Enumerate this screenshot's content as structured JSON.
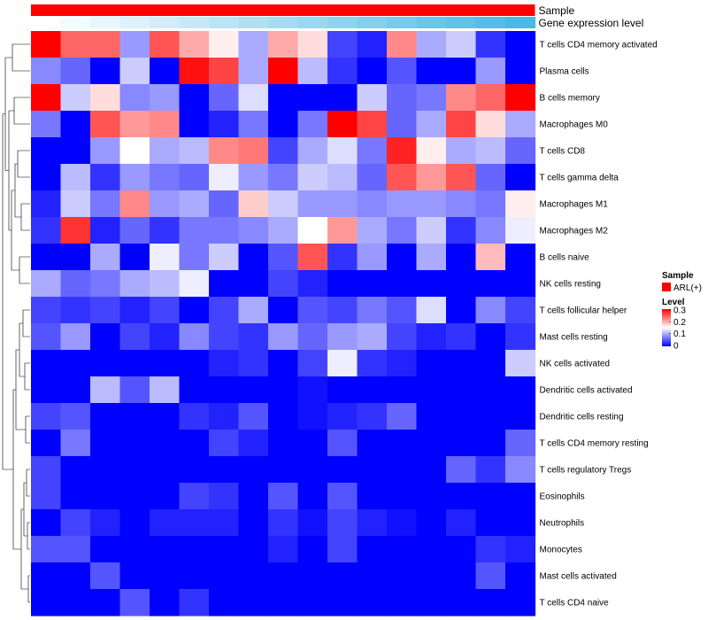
{
  "chart_data": {
    "type": "heatmap",
    "title": "",
    "annotations": [
      {
        "name": "Sample",
        "kind": "categorical",
        "color": "#ff0000"
      },
      {
        "name": "Gene expression level",
        "kind": "continuous",
        "colors": [
          "#ffffff",
          "#4cb8e6"
        ]
      }
    ],
    "rows": [
      "T cells CD4 memory activated",
      "Plasma cells",
      "B cells memory",
      "Macrophages M0",
      "T cells CD8",
      "T cells gamma delta",
      "Macrophages M1",
      "Macrophages M2",
      "B cells naive",
      "NK cells resting",
      "T cells follicular helper",
      "Mast cells resting",
      "NK cells activated",
      "Dendritic cells activated",
      "Dendritic cells resting",
      "T cells CD4 memory resting",
      "T cells regulatory  Tregs",
      "Eosinophils",
      "Neutrophils",
      "Monocytes",
      "Mast cells activated",
      "T cells CD4 naive"
    ],
    "n_columns": 17,
    "values": [
      [
        0.3,
        0.24,
        0.24,
        0.09,
        0.25,
        0.2,
        0.16,
        0.1,
        0.2,
        0.17,
        0.04,
        0.02,
        0.22,
        0.1,
        0.12,
        0.03,
        0.0
      ],
      [
        0.08,
        0.06,
        0.0,
        0.12,
        0.0,
        0.29,
        0.26,
        0.1,
        0.3,
        0.11,
        0.03,
        0.0,
        0.05,
        0.0,
        0.0,
        0.09,
        0.0
      ],
      [
        0.3,
        0.12,
        0.17,
        0.08,
        0.09,
        0.0,
        0.06,
        0.13,
        0.0,
        0.0,
        0.0,
        0.12,
        0.06,
        0.07,
        0.22,
        0.24,
        0.3
      ],
      [
        0.07,
        0.0,
        0.25,
        0.21,
        0.22,
        0.0,
        0.02,
        0.07,
        0.0,
        0.07,
        0.3,
        0.26,
        0.06,
        0.1,
        0.26,
        0.17,
        0.1
      ],
      [
        0.0,
        0.0,
        0.09,
        0.15,
        0.1,
        0.11,
        0.22,
        0.23,
        0.04,
        0.1,
        0.13,
        0.07,
        0.28,
        0.16,
        0.1,
        0.11,
        0.06
      ],
      [
        0.0,
        0.11,
        0.03,
        0.09,
        0.07,
        0.06,
        0.14,
        0.09,
        0.07,
        0.12,
        0.11,
        0.06,
        0.25,
        0.21,
        0.25,
        0.06,
        0.0
      ],
      [
        0.02,
        0.12,
        0.07,
        0.22,
        0.09,
        0.1,
        0.06,
        0.18,
        0.12,
        0.09,
        0.09,
        0.08,
        0.09,
        0.09,
        0.08,
        0.07,
        0.16
      ],
      [
        0.03,
        0.27,
        0.02,
        0.06,
        0.03,
        0.07,
        0.07,
        0.08,
        0.1,
        0.15,
        0.21,
        0.1,
        0.07,
        0.12,
        0.03,
        0.08,
        0.14
      ],
      [
        0.0,
        0.0,
        0.1,
        0.0,
        0.14,
        0.07,
        0.12,
        0.0,
        0.05,
        0.25,
        0.03,
        0.09,
        0.0,
        0.1,
        0.0,
        0.19,
        0.0
      ],
      [
        0.1,
        0.06,
        0.07,
        0.1,
        0.11,
        0.14,
        0.0,
        0.0,
        0.04,
        0.02,
        0.0,
        0.0,
        0.0,
        0.0,
        0.0,
        0.0,
        0.0
      ],
      [
        0.04,
        0.03,
        0.04,
        0.02,
        0.04,
        0.0,
        0.04,
        0.1,
        0.0,
        0.05,
        0.04,
        0.07,
        0.05,
        0.13,
        0.0,
        0.08,
        0.04
      ],
      [
        0.05,
        0.09,
        0.0,
        0.04,
        0.02,
        0.08,
        0.04,
        0.03,
        0.09,
        0.06,
        0.09,
        0.1,
        0.04,
        0.02,
        0.03,
        0.0,
        0.03
      ],
      [
        0.0,
        0.0,
        0.0,
        0.0,
        0.0,
        0.0,
        0.02,
        0.03,
        0.0,
        0.04,
        0.14,
        0.03,
        0.02,
        0.0,
        0.0,
        0.0,
        0.12
      ],
      [
        0.0,
        0.0,
        0.11,
        0.05,
        0.11,
        0.0,
        0.0,
        0.0,
        0.0,
        0.01,
        0.0,
        0.0,
        0.0,
        0.0,
        0.0,
        0.0,
        0.0
      ],
      [
        0.04,
        0.05,
        0.0,
        0.0,
        0.0,
        0.03,
        0.02,
        0.05,
        0.0,
        0.01,
        0.02,
        0.03,
        0.06,
        0.0,
        0.0,
        0.0,
        0.0
      ],
      [
        0.0,
        0.07,
        0.0,
        0.0,
        0.0,
        0.0,
        0.04,
        0.02,
        0.0,
        0.0,
        0.05,
        0.0,
        0.0,
        0.0,
        0.0,
        0.0,
        0.06
      ],
      [
        0.04,
        0.0,
        0.0,
        0.0,
        0.0,
        0.0,
        0.0,
        0.0,
        0.0,
        0.0,
        0.0,
        0.0,
        0.0,
        0.0,
        0.06,
        0.03,
        0.08
      ],
      [
        0.04,
        0.0,
        0.0,
        0.0,
        0.0,
        0.04,
        0.03,
        0.0,
        0.05,
        0.0,
        0.05,
        0.0,
        0.0,
        0.0,
        0.0,
        0.0,
        0.0
      ],
      [
        0.0,
        0.04,
        0.02,
        0.0,
        0.02,
        0.02,
        0.02,
        0.0,
        0.03,
        0.01,
        0.04,
        0.02,
        0.01,
        0.0,
        0.02,
        0.0,
        0.0
      ],
      [
        0.05,
        0.05,
        0.0,
        0.0,
        0.0,
        0.0,
        0.0,
        0.0,
        0.02,
        0.0,
        0.04,
        0.0,
        0.0,
        0.0,
        0.0,
        0.03,
        0.02
      ],
      [
        0.0,
        0.0,
        0.05,
        0.0,
        0.0,
        0.0,
        0.0,
        0.0,
        0.0,
        0.0,
        0.0,
        0.0,
        0.0,
        0.0,
        0.0,
        0.05,
        0.0
      ],
      [
        0.0,
        0.0,
        0.0,
        0.05,
        0.0,
        0.03,
        0.0,
        0.0,
        0.0,
        0.0,
        0.0,
        0.0,
        0.0,
        0.0,
        0.0,
        0.0,
        0.0
      ]
    ],
    "scale": {
      "min": 0,
      "max": 0.3,
      "low_color": "#0000ff",
      "mid_color": "#ffffff",
      "high_color": "#ff0000"
    },
    "legend": {
      "position": "right",
      "sample_title": "Sample",
      "sample_entry": "ARL(+)",
      "level_title": "Level",
      "ticks": [
        "0.3",
        "0.2",
        "0.1",
        "0"
      ]
    },
    "dendrogram": "rows"
  }
}
